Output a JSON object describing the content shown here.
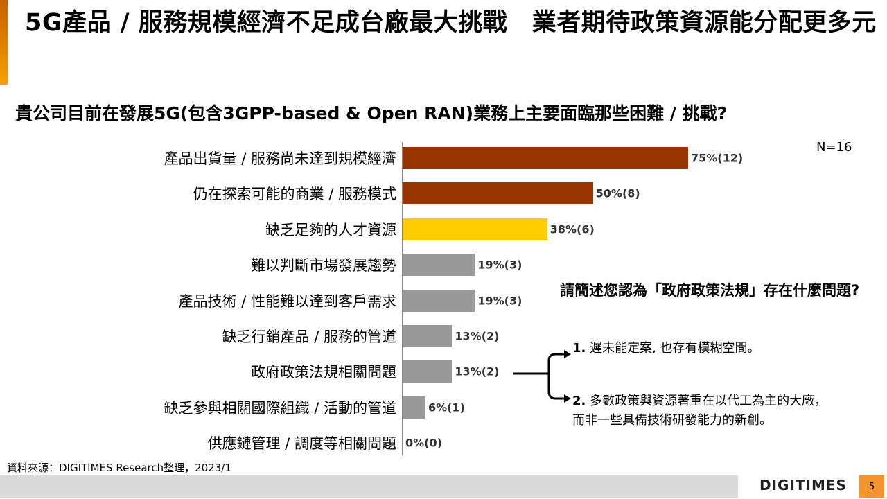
{
  "title": "5G產品 / 服務規模經濟不足成台廠最大挑戰　業者期待政策資源能分配更多元",
  "chart_data": {
    "type": "bar",
    "orientation": "horizontal",
    "title": "貴公司目前在發展5G(包含3GPP-based & Open RAN)業務上主要面臨那些困難 / 挑戰?",
    "note": "N=16",
    "categories": [
      "產品出貨量 / 服務尚未達到規模經濟",
      "仍在探索可能的商業 / 服務模式",
      "缺乏足夠的人才資源",
      "難以判斷市場發展趨勢",
      "產品技術 / 性能難以達到客戶需求",
      "缺乏行銷產品 / 服務的管道",
      "政府政策法規相關問題",
      "缺乏參與相關國際組織 / 活動的管道",
      "供應鏈管理 / 調度等相關問題"
    ],
    "values": [
      75,
      50,
      38,
      19,
      19,
      13,
      13,
      6,
      0
    ],
    "labels": [
      "75%(12)",
      "50%(8)",
      "38%(6)",
      "19%(3)",
      "19%(3)",
      "13%(2)",
      "13%(2)",
      "6%(1)",
      "0%(0)"
    ],
    "colors": [
      "#993300",
      "#993300",
      "#ffcc00",
      "#999999",
      "#999999",
      "#999999",
      "#999999",
      "#999999",
      "#999999"
    ],
    "xlim": [
      0,
      100
    ]
  },
  "side": {
    "question": "請簡述您認為「政府政策法規」存在什麼問題?",
    "items": [
      {
        "num": "1.",
        "text": "遲未能定案, 也存有模糊空間。"
      },
      {
        "num": "2.",
        "text": "多數政策與資源著重在以代工為主的大廠，而非一些具備技術研發能力的新創。"
      }
    ]
  },
  "source": "資料來源：DIGITIMES Research整理，2023/1",
  "logo": "DIGITIMES",
  "page": "5"
}
